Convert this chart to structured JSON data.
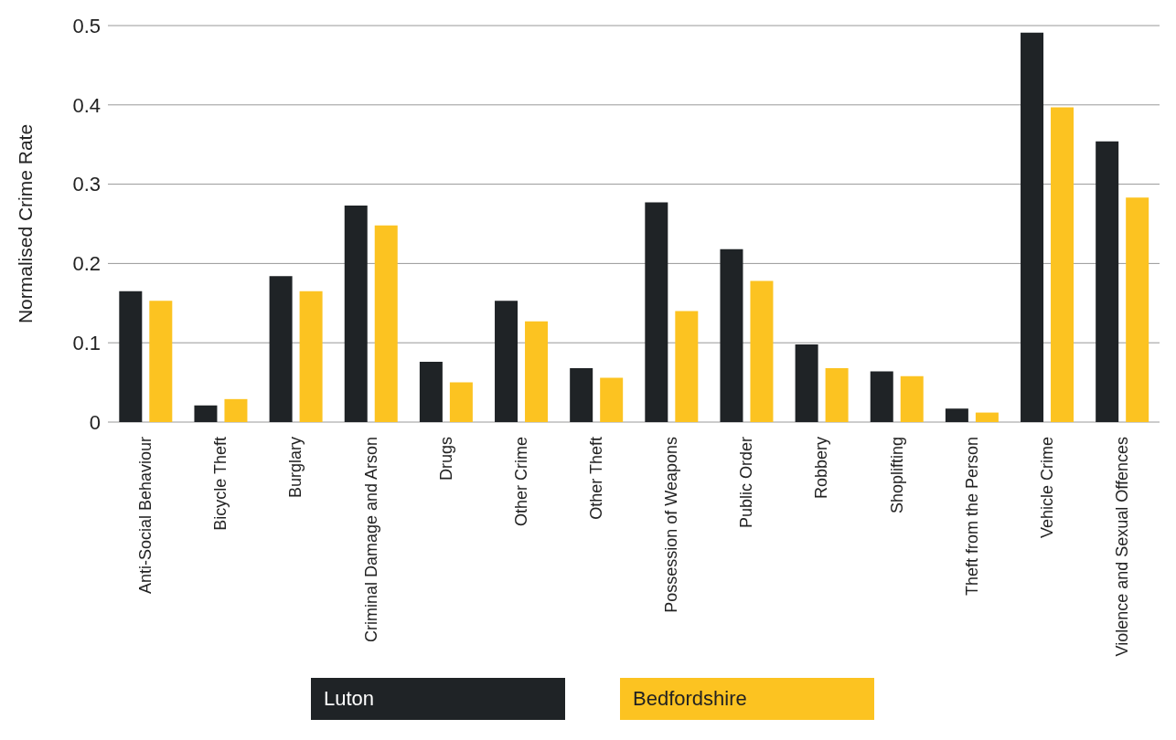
{
  "chart_data": {
    "type": "bar",
    "ylabel": "Normalised Crime Rate",
    "categories": [
      "Anti-Social Behaviour",
      "Bicycle Theft",
      "Burglary",
      "Criminal Damage and Arson",
      "Drugs",
      "Other Crime",
      "Other Theft",
      "Possession of Weapons",
      "Public Order",
      "Robbery",
      "Shoplifting",
      "Theft from the Person",
      "Vehicle Crime",
      "Violence and Sexual Offences"
    ],
    "series": [
      {
        "name": "Luton",
        "color": "#1f2326",
        "values": [
          0.165,
          0.021,
          0.184,
          0.273,
          0.076,
          0.153,
          0.068,
          0.277,
          0.218,
          0.098,
          0.064,
          0.017,
          0.491,
          0.354
        ]
      },
      {
        "name": "Bedfordshire",
        "color": "#fcc321",
        "values": [
          0.153,
          0.029,
          0.165,
          0.248,
          0.05,
          0.127,
          0.056,
          0.14,
          0.178,
          0.068,
          0.058,
          0.012,
          0.397,
          0.283
        ]
      }
    ],
    "ylim": [
      0,
      0.5
    ],
    "yticks": [
      0,
      0.1,
      0.2,
      0.3,
      0.4,
      0.5
    ],
    "grid": "y",
    "legend": "bottom"
  }
}
